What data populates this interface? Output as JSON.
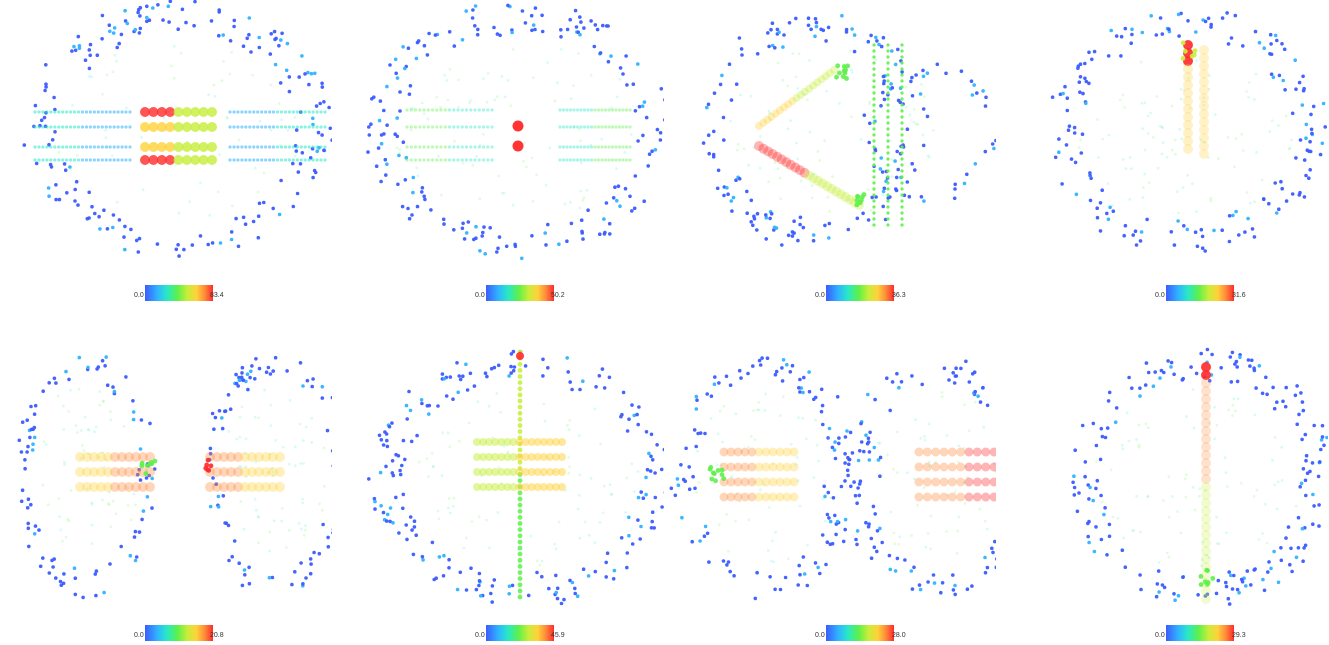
{
  "colorbar_colors": [
    "#3b5cff",
    "#2fb3ff",
    "#28e8c8",
    "#5ef04a",
    "#c6ee3a",
    "#ffd23a",
    "#ff8a3a",
    "#ff2a2a"
  ],
  "panels": [
    {
      "min_label": "0.0",
      "max_label": "83.4"
    },
    {
      "min_label": "0.0",
      "max_label": "50.2"
    },
    {
      "min_label": "0.0",
      "max_label": "36.3"
    },
    {
      "min_label": "0.0",
      "max_label": "31.6"
    },
    {
      "min_label": "0.0",
      "max_label": "20.8"
    },
    {
      "min_label": "0.0",
      "max_label": "45.9"
    },
    {
      "min_label": "0.0",
      "max_label": "28.0"
    },
    {
      "min_label": "0.0",
      "max_label": "29.3"
    }
  ]
}
